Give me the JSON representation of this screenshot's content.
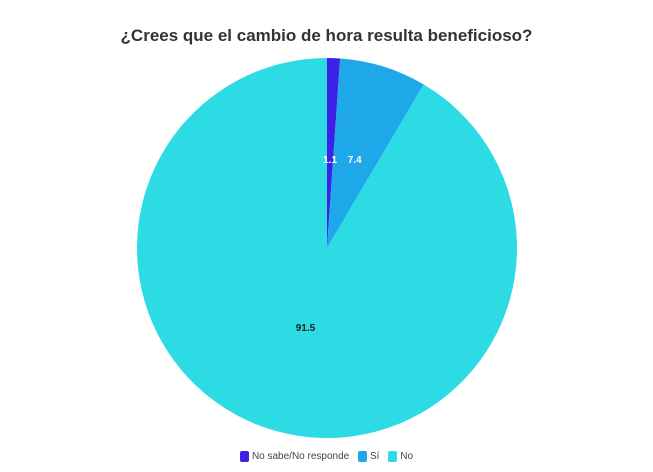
{
  "chart_data": {
    "type": "pie",
    "title": "¿Crees que el cambio de hora resulta beneficioso?",
    "slices": [
      {
        "label": "No sabe/No responde",
        "value": 1.1,
        "value_label": "1.1",
        "color": "#3b22e4"
      },
      {
        "label": "Sí",
        "value": 7.4,
        "value_label": "7.4",
        "color": "#1ea8ea"
      },
      {
        "label": "No",
        "value": 91.5,
        "value_label": "91.5",
        "color": "#2ddbe5"
      }
    ],
    "legend_position": "bottom",
    "start_angle": "12 o'clock, clockwise"
  }
}
